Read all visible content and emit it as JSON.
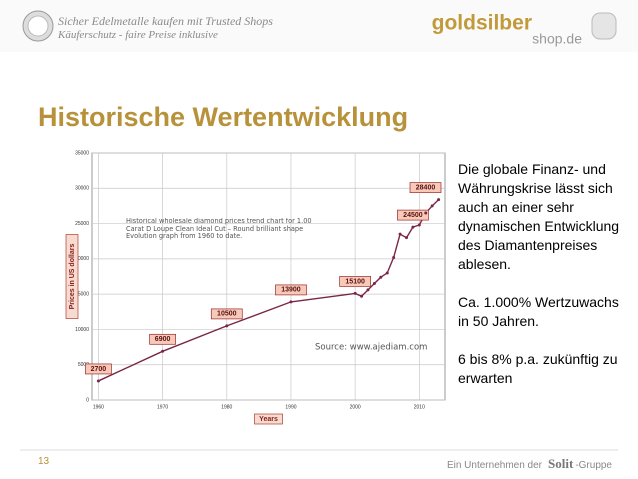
{
  "header": {
    "line1": "Sicher Edelmetalle kaufen mit Trusted Shops",
    "line2": "Käuferschutz - faire Preise inklusive",
    "logo_main": "goldsilber",
    "logo_sub": "shop.de"
  },
  "title": "Historische Wertentwicklung",
  "chart_data": {
    "type": "line",
    "annotation": "Historical wholesale diamond prices trend chart for 1.00 Carat D Loupe Clean Ideal Cut – Round brilliant shape Evolution graph from 1960 to date.",
    "source": "Source: www.ajediam.com",
    "x_label": "Years",
    "y_label": "Prices in US dollars",
    "x": [
      1960,
      1970,
      1980,
      1990,
      2000,
      2001,
      2002,
      2003,
      2004,
      2005,
      2006,
      2007,
      2008,
      2009,
      2010,
      2011,
      2012,
      2013
    ],
    "series": [
      {
        "color": "#7a2648",
        "values": [
          2700,
          6900,
          10500,
          13900,
          15100,
          14700,
          15600,
          16500,
          17400,
          18000,
          20200,
          23500,
          23000,
          24500,
          24800,
          26500,
          27500,
          28400
        ],
        "value_labels": [
          "2700",
          "6900",
          "10500",
          "13900",
          "15100",
          null,
          null,
          null,
          null,
          null,
          null,
          null,
          null,
          "24500",
          null,
          null,
          null,
          "28400"
        ]
      }
    ],
    "xlim": [
      1959,
      2014
    ],
    "xticks": [
      1960,
      1970,
      1980,
      1990,
      2000,
      2010
    ],
    "ylim": [
      0,
      35000
    ],
    "yticks": [
      0,
      5000,
      10000,
      15000,
      20000,
      25000,
      30000,
      35000
    ],
    "grid": true
  },
  "text": [
    "Die globale Finanz- und Währungskrise lässt sich auch an einer sehr dynamischen Entwicklung des Diamantenpreises ablesen.",
    "Ca. 1.000% Wertzuwachs in 50 Jahren.",
    "6 bis 8% p.a. zukünftig zu erwarten"
  ],
  "footer": {
    "page": "13",
    "prefix": "Ein Unternehmen der",
    "brand": "Solit",
    "suffix": "-Gruppe"
  }
}
